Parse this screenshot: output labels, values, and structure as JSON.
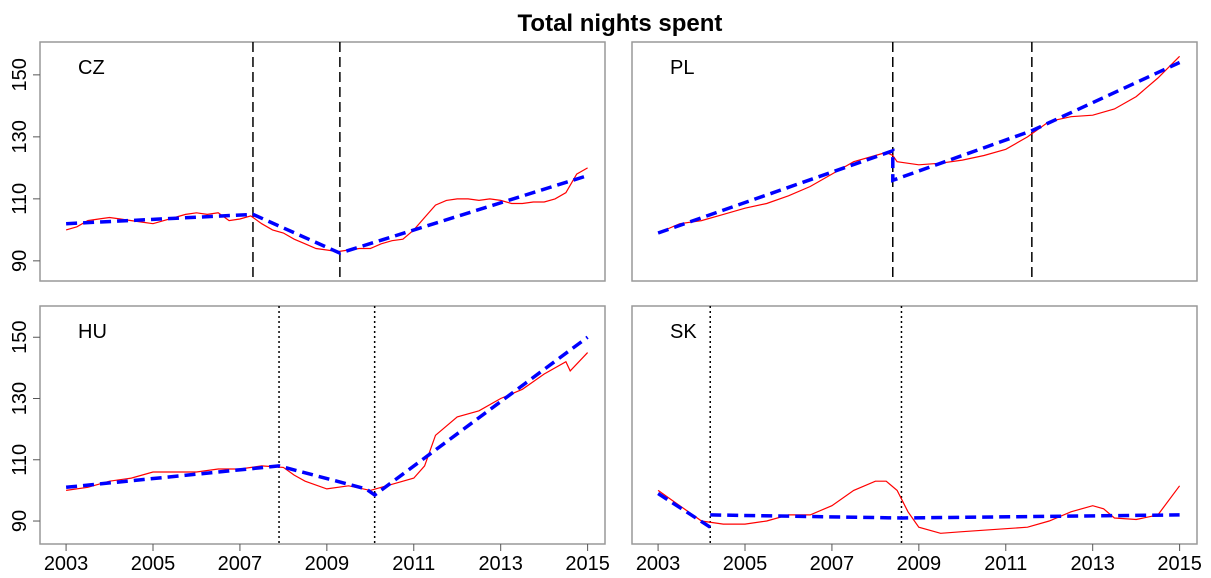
{
  "title": "Total nights spent",
  "chart_data": [
    {
      "type": "line",
      "label": "CZ",
      "xlim": [
        2002.4,
        2015.4
      ],
      "ylim": [
        83.5,
        160.6
      ],
      "yticks": [
        90,
        110,
        130,
        150
      ],
      "break_style": "dashed",
      "breaks": [
        2007.3,
        2009.3
      ],
      "series": [
        {
          "color": "#ff0000",
          "x": [
            2003,
            2003.25,
            2003.5,
            2003.75,
            2004,
            2004.25,
            2004.5,
            2004.75,
            2005,
            2005.25,
            2005.5,
            2005.75,
            2006,
            2006.25,
            2006.5,
            2006.75,
            2007,
            2007.25,
            2007.5,
            2007.75,
            2008,
            2008.25,
            2008.5,
            2008.75,
            2009,
            2009.25,
            2009.5,
            2009.75,
            2010,
            2010.25,
            2010.5,
            2010.75,
            2011,
            2011.25,
            2011.5,
            2011.75,
            2012,
            2012.25,
            2012.5,
            2012.75,
            2013,
            2013.25,
            2013.5,
            2013.75,
            2014,
            2014.25,
            2014.5,
            2014.75,
            2015
          ],
          "values": [
            100,
            101,
            103,
            103.5,
            104,
            103.5,
            103,
            102.5,
            102,
            103,
            104,
            105,
            105.5,
            105,
            105.5,
            103,
            103.5,
            104.5,
            102,
            100,
            99,
            97,
            95.5,
            94,
            93.5,
            93,
            93.5,
            94,
            94,
            95.5,
            96.5,
            97,
            100,
            104,
            108,
            109.5,
            110,
            110,
            109.5,
            110,
            109.5,
            108.5,
            108.5,
            109,
            109,
            110,
            112,
            118,
            120
          ]
        },
        {
          "color": "#0000ff",
          "x": [
            2003,
            2007.3,
            2009.3,
            2015
          ],
          "values": [
            102,
            105,
            92.5,
            117.5
          ]
        }
      ]
    },
    {
      "type": "line",
      "label": "PL",
      "xlim": [
        2002.4,
        2015.4
      ],
      "ylim": [
        83.5,
        160.6
      ],
      "break_style": "dashed",
      "breaks": [
        2008.4,
        2011.6
      ],
      "series": [
        {
          "color": "#ff0000",
          "x": [
            2003,
            2003.5,
            2004,
            2004.5,
            2005,
            2005.5,
            2006,
            2006.5,
            2007,
            2007.5,
            2008,
            2008.25,
            2008.4,
            2008.5,
            2009,
            2009.5,
            2010,
            2010.5,
            2011,
            2011.5,
            2012,
            2012.5,
            2013,
            2013.5,
            2014,
            2014.5,
            2015
          ],
          "values": [
            99,
            102,
            103,
            105,
            107,
            108.5,
            111,
            114,
            118,
            122,
            124,
            125,
            124,
            122,
            121,
            121.5,
            122.5,
            124,
            126,
            130,
            135,
            136.5,
            137,
            139,
            143,
            149,
            156
          ]
        },
        {
          "color": "#0000ff",
          "x": [
            2003,
            2008.4,
            2008.4,
            2011.6,
            2015
          ],
          "values": [
            99,
            125.5,
            116,
            132,
            154
          ]
        }
      ]
    },
    {
      "type": "line",
      "label": "HU",
      "xlim": [
        2002.4,
        2015.4
      ],
      "ylim": [
        82.5,
        160.2
      ],
      "yticks": [
        90,
        110,
        130,
        150
      ],
      "xticks": [
        2003,
        2005,
        2007,
        2009,
        2011,
        2013,
        2015
      ],
      "break_style": "dotted",
      "breaks": [
        2007.9,
        2010.1
      ],
      "series": [
        {
          "color": "#ff0000",
          "x": [
            2003,
            2003.5,
            2004,
            2004.5,
            2005,
            2005.5,
            2006,
            2006.5,
            2007,
            2007.5,
            2008,
            2008.25,
            2008.5,
            2009,
            2009.5,
            2010,
            2010.5,
            2011,
            2011.25,
            2011.5,
            2012,
            2012.5,
            2013,
            2013.5,
            2014,
            2014.5,
            2014.6,
            2015
          ],
          "values": [
            100,
            101,
            103,
            104,
            106,
            106,
            106,
            107,
            107,
            108,
            107.5,
            105,
            103,
            100.5,
            101.5,
            100,
            102,
            104,
            108,
            118,
            124,
            126,
            130,
            133,
            138,
            142,
            139,
            145
          ]
        },
        {
          "color": "#0000ff",
          "x": [
            2003,
            2007.9,
            2009.9,
            2010.1,
            2015
          ],
          "values": [
            101,
            108,
            100.5,
            98.5,
            150
          ]
        }
      ]
    },
    {
      "type": "line",
      "label": "SK",
      "xlim": [
        2002.4,
        2015.4
      ],
      "ylim": [
        82.5,
        160.2
      ],
      "xticks": [
        2003,
        2005,
        2007,
        2009,
        2011,
        2013,
        2015
      ],
      "break_style": "dotted",
      "breaks": [
        2004.2,
        2008.6
      ],
      "series": [
        {
          "color": "#ff0000",
          "x": [
            2003,
            2003.5,
            2004,
            2004.5,
            2005,
            2005.5,
            2006,
            2006.5,
            2007,
            2007.5,
            2008,
            2008.25,
            2008.5,
            2008.75,
            2009,
            2009.5,
            2010,
            2010.5,
            2011,
            2011.5,
            2012,
            2012.5,
            2013,
            2013.25,
            2013.5,
            2014,
            2014.5,
            2015
          ],
          "values": [
            100,
            95,
            90,
            89,
            89,
            90,
            92,
            92,
            95,
            100,
            103,
            103,
            100,
            93,
            88,
            86,
            86.5,
            87,
            87.5,
            88,
            90,
            93,
            95,
            94,
            91,
            90.5,
            92,
            101.5
          ]
        },
        {
          "color": "#0000ff",
          "x": [
            2003,
            2004.2,
            null,
            2004.2,
            2008.6,
            2015
          ],
          "values": [
            99,
            88,
            null,
            92,
            91,
            92
          ]
        }
      ]
    }
  ]
}
